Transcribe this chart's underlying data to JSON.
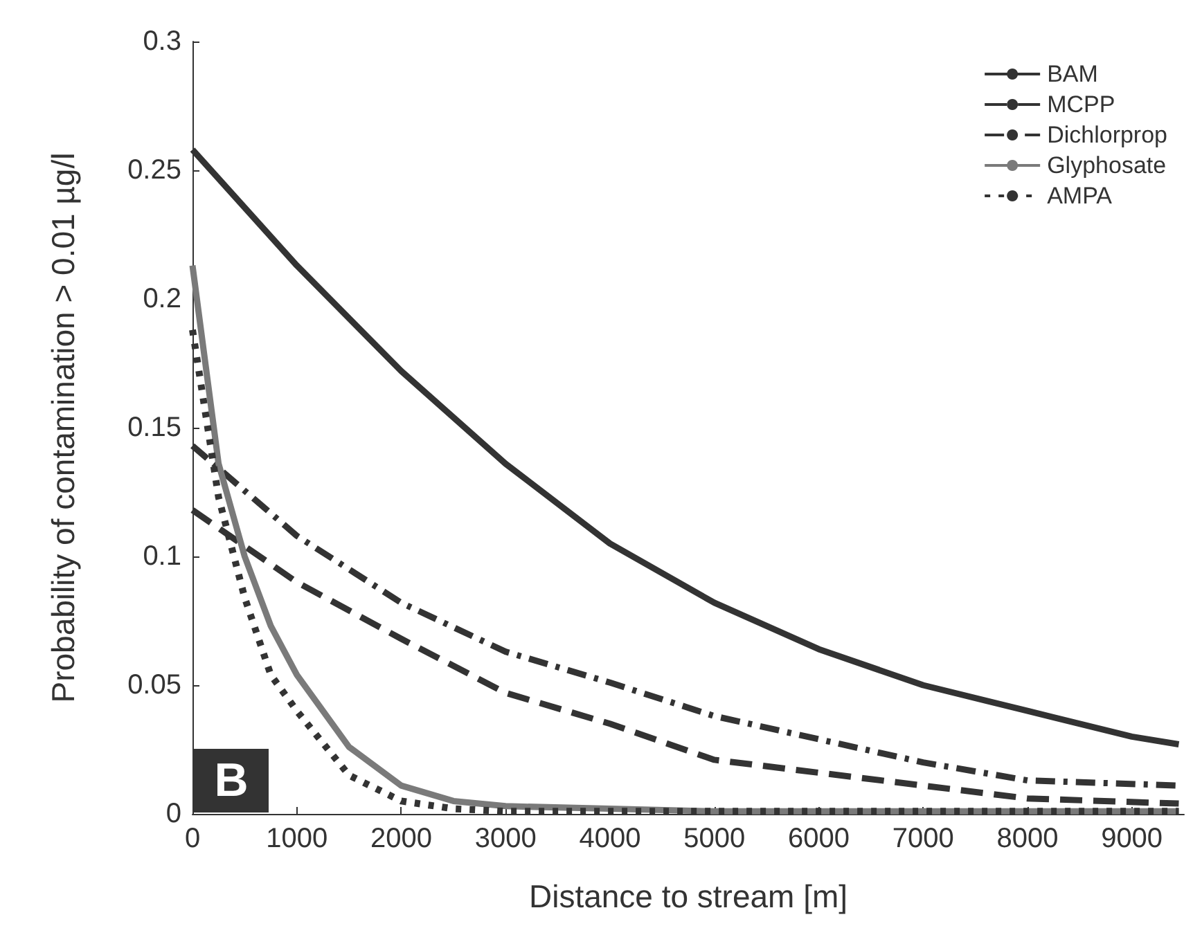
{
  "chart_data": {
    "type": "line",
    "xlabel": "Distance to stream [m]",
    "ylabel": "Probability of contamination > 0.01 µg/l",
    "xlim": [
      0,
      9500
    ],
    "xticks": [
      0,
      1000,
      2000,
      3000,
      4000,
      5000,
      6000,
      7000,
      8000,
      9000
    ],
    "ylim": [
      0,
      0.3
    ],
    "yticks": [
      0,
      0.05,
      0.1,
      0.15,
      0.2,
      0.25,
      0.3
    ],
    "grid": false,
    "legend": "top right",
    "marker": "none",
    "annotations": [
      "B"
    ],
    "series": [
      {
        "name": "BAM",
        "color": "#333333",
        "line_style": "solid",
        "x": [
          0,
          1000,
          2000,
          3000,
          4000,
          5000,
          6000,
          7000,
          8000,
          9000,
          9450
        ],
        "values": [
          0.258,
          0.213,
          0.172,
          0.136,
          0.105,
          0.082,
          0.064,
          0.05,
          0.04,
          0.03,
          0.027
        ]
      },
      {
        "name": "MCPP",
        "color": "#333333",
        "line_style": "dashed",
        "x": [
          0,
          1000,
          2000,
          3000,
          4000,
          5000,
          6000,
          7000,
          8000,
          9450
        ],
        "values": [
          0.118,
          0.09,
          0.068,
          0.047,
          0.035,
          0.021,
          0.016,
          0.011,
          0.006,
          0.004
        ]
      },
      {
        "name": "Dichlorprop",
        "color": "#333333",
        "line_style": "dashdot",
        "x": [
          0,
          1000,
          2000,
          3000,
          4000,
          5000,
          6000,
          7000,
          8000,
          9450
        ],
        "values": [
          0.143,
          0.108,
          0.082,
          0.063,
          0.051,
          0.038,
          0.029,
          0.02,
          0.013,
          0.011
        ]
      },
      {
        "name": "Glyphosate",
        "color": "#7a7a7a",
        "line_style": "solid",
        "x": [
          0,
          250,
          500,
          750,
          1000,
          1500,
          2000,
          2500,
          3000,
          4000,
          5000,
          9450
        ],
        "values": [
          0.213,
          0.136,
          0.1,
          0.073,
          0.054,
          0.026,
          0.011,
          0.005,
          0.003,
          0.002,
          0.001,
          0.001
        ]
      },
      {
        "name": "AMPA",
        "color": "#333333",
        "line_style": "dotted",
        "x": [
          0,
          250,
          500,
          750,
          1000,
          1500,
          2000,
          2500,
          3000,
          9450
        ],
        "values": [
          0.188,
          0.123,
          0.084,
          0.054,
          0.04,
          0.015,
          0.005,
          0.002,
          0.001,
          0.001
        ]
      }
    ]
  }
}
